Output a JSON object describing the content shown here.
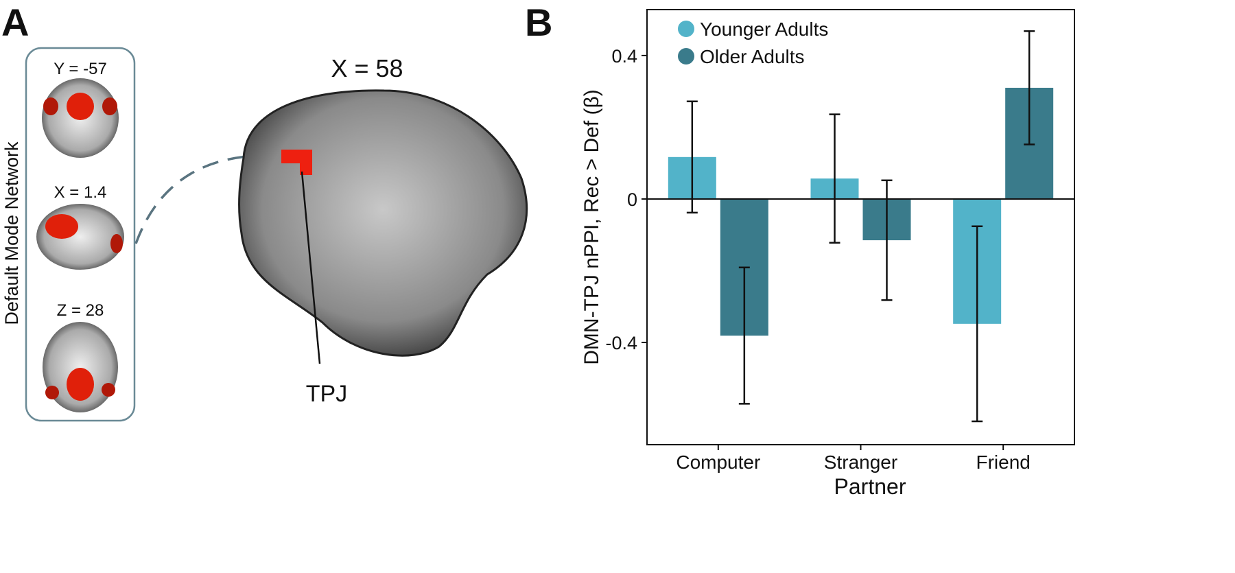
{
  "panel_a": {
    "label": "A",
    "network_title": "Default Mode Network",
    "slices": [
      "Y = -57",
      "X = 1.4",
      "Z = 28"
    ],
    "sagittal_title": "X = 58",
    "roi_label": "TPJ"
  },
  "chart_data": {
    "type": "bar",
    "panel_label": "B",
    "x_label": "Partner",
    "y_label": "DMN-TPJ nPPI, Rec > Def (β)",
    "categories": [
      "Computer",
      "Stranger",
      "Friend"
    ],
    "series": [
      {
        "name": "Younger Adults",
        "color": "#52b3c9",
        "values": [
          0.117,
          0.057,
          -0.348
        ],
        "errors": [
          0.155,
          0.179,
          0.272
        ]
      },
      {
        "name": "Older Adults",
        "color": "#3a7b8b",
        "values": [
          -0.381,
          -0.115,
          0.31
        ],
        "errors": [
          0.19,
          0.167,
          0.158
        ]
      }
    ],
    "ylim": [
      -0.685,
      0.528
    ],
    "yticks": [
      -0.4,
      0,
      0.4
    ],
    "legend": "upper left"
  }
}
